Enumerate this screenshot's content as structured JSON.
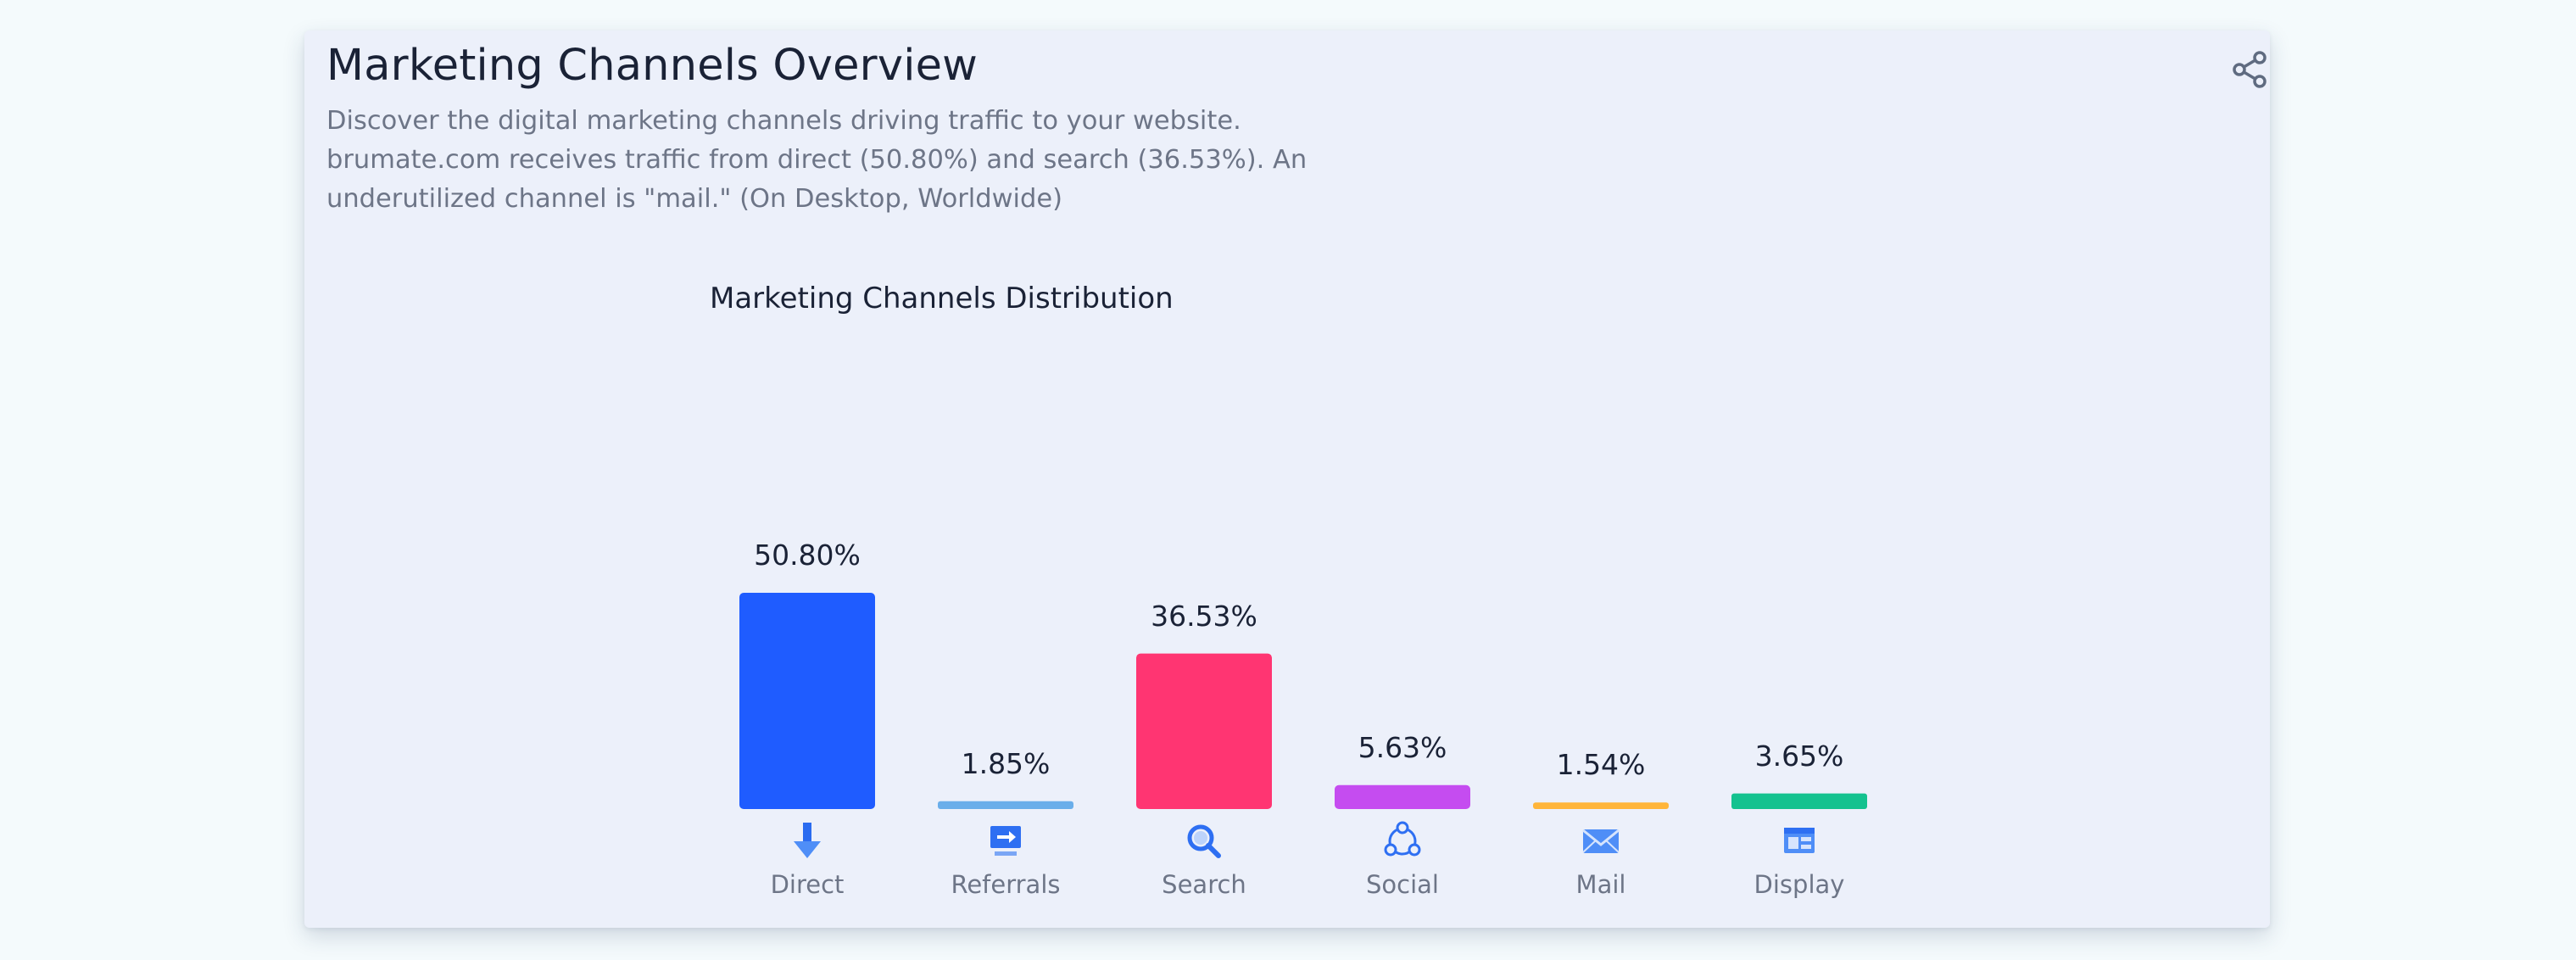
{
  "card": {
    "title": "Marketing Channels Overview",
    "description": "Discover the digital marketing channels driving traffic to your website. brumate.com receives traffic from direct (50.80%) and search (36.53%). An underutilized channel is \"mail.\" (On Desktop, Worldwide)",
    "share_icon": "share-icon"
  },
  "chart_data": {
    "type": "bar",
    "title": "Marketing Channels Distribution",
    "categories": [
      "Direct",
      "Referrals",
      "Search",
      "Social",
      "Mail",
      "Display"
    ],
    "values": [
      50.8,
      1.85,
      36.53,
      5.63,
      1.54,
      3.65
    ],
    "value_labels": [
      "50.80%",
      "1.85%",
      "36.53%",
      "5.63%",
      "1.54%",
      "3.65%"
    ],
    "colors": [
      "#1f5cff",
      "#6aaeea",
      "#ff3572",
      "#c54cf0",
      "#ffb53a",
      "#14c28f"
    ],
    "icons": [
      "direct-arrow-icon",
      "referrals-icon",
      "search-icon",
      "social-icon",
      "mail-icon",
      "display-icon"
    ],
    "xlabel": "",
    "ylabel": "",
    "grid": false
  }
}
